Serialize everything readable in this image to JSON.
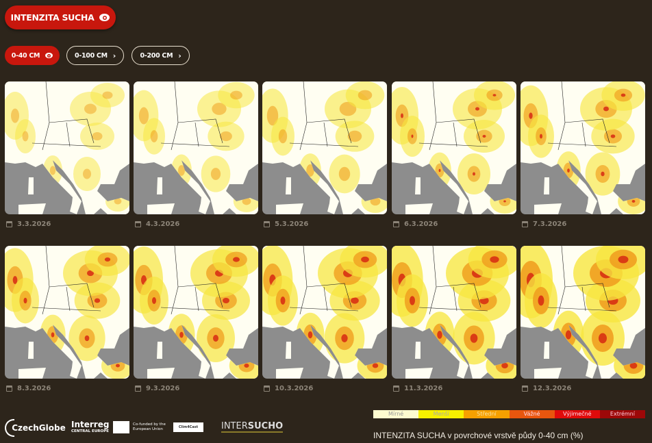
{
  "header": {
    "main_button": "INTENZITA SUCHA",
    "main_icon": "eye-icon"
  },
  "depth_tabs": [
    {
      "label": "0-40 CM",
      "icon": "eye-icon",
      "active": true
    },
    {
      "label": "0-100 CM",
      "icon": "chevron-right-icon",
      "active": false
    },
    {
      "label": "0-200 CM",
      "icon": "chevron-right-icon",
      "active": false
    }
  ],
  "chevron": "›",
  "maps": [
    {
      "date": "3.3.2026"
    },
    {
      "date": "4.3.2026"
    },
    {
      "date": "5.3.2026"
    },
    {
      "date": "6.3.2026"
    },
    {
      "date": "7.3.2026"
    },
    {
      "date": "8.3.2026"
    },
    {
      "date": "9.3.2026"
    },
    {
      "date": "10.3.2026"
    },
    {
      "date": "11.3.2026"
    },
    {
      "date": "12.3.2026"
    }
  ],
  "footer": {
    "logos": {
      "czechglobe": "CzechGlobe",
      "interreg": "Interreg",
      "interreg_sub": "CENTRAL EUROPE",
      "eu": "Co-funded by the European Union",
      "clim4cast": "Clim4Cast",
      "intersucho_a": "INTER",
      "intersucho_b": "SUCHO"
    },
    "legend": [
      {
        "label": "Mírné",
        "color": "#fdfbd0",
        "text": "#999"
      },
      {
        "label": "Menší",
        "color": "#f7f000",
        "text": "#aaa"
      },
      {
        "label": "Střední",
        "color": "#f6a000",
        "text": "#f8e0a0"
      },
      {
        "label": "Vážné",
        "color": "#e8560e",
        "text": "#fde"
      },
      {
        "label": "Výjimečné",
        "color": "#e00b0b",
        "text": "#fde"
      },
      {
        "label": "Extrémní",
        "color": "#9d0808",
        "text": "#fcd"
      }
    ],
    "legend_title": "INTENZITA SUCHA v povrchové vrstvě půdy 0-40 cm (%)"
  }
}
